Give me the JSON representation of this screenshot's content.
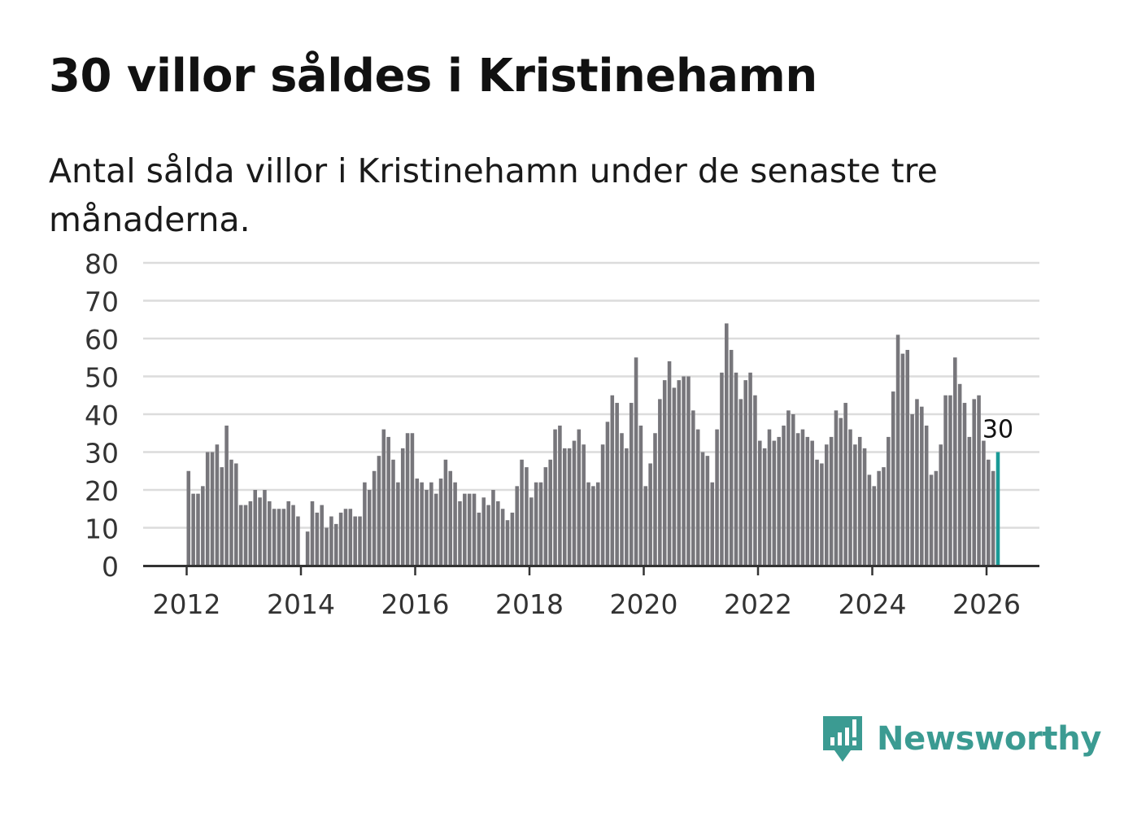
{
  "title": "30 villor såldes i Kristinehamn",
  "subtitle": "Antal sålda villor i Kristinehamn under de senaste tre månaderna.",
  "brand": {
    "name": "Newsworthy",
    "color": "#3b9b92",
    "icon": "newsworthy-logo-icon"
  },
  "colors": {
    "bar": "#77767b",
    "highlight": "#1a9a96",
    "grid": "#dcdcdc",
    "axis": "#333333"
  },
  "chart_data": {
    "type": "bar",
    "title": "30 villor såldes i Kristinehamn",
    "xlabel": "",
    "ylabel": "",
    "ylim": [
      0,
      80
    ],
    "yticks": [
      0,
      10,
      20,
      30,
      40,
      50,
      60,
      70,
      80
    ],
    "xticks": [
      "2012",
      "2014",
      "2016",
      "2018",
      "2020",
      "2022",
      "2024",
      "2026"
    ],
    "start": "2012-01",
    "interval": "month",
    "values": [
      25,
      19,
      19,
      21,
      30,
      30,
      32,
      26,
      37,
      28,
      27,
      16,
      16,
      17,
      20,
      18,
      20,
      17,
      15,
      15,
      15,
      17,
      16,
      13,
      null,
      9,
      17,
      14,
      16,
      10,
      13,
      11,
      14,
      15,
      15,
      13,
      13,
      22,
      20,
      25,
      29,
      36,
      34,
      28,
      22,
      31,
      35,
      35,
      23,
      22,
      20,
      22,
      19,
      23,
      28,
      25,
      22,
      17,
      19,
      19,
      19,
      14,
      18,
      16,
      20,
      17,
      15,
      12,
      14,
      21,
      28,
      26,
      18,
      22,
      22,
      26,
      28,
      36,
      37,
      31,
      31,
      33,
      36,
      32,
      22,
      21,
      22,
      32,
      38,
      45,
      43,
      35,
      31,
      43,
      55,
      37,
      21,
      27,
      35,
      44,
      49,
      54,
      47,
      49,
      50,
      50,
      41,
      36,
      30,
      29,
      22,
      36,
      51,
      64,
      57,
      51,
      44,
      49,
      51,
      45,
      33,
      31,
      36,
      33,
      34,
      37,
      41,
      40,
      35,
      36,
      34,
      33,
      28,
      27,
      32,
      34,
      41,
      39,
      43,
      36,
      32,
      34,
      31,
      24,
      21,
      25,
      26,
      34,
      46,
      61,
      56,
      57,
      40,
      44,
      42,
      37,
      24,
      25,
      32,
      45,
      45,
      55,
      48,
      43,
      34,
      44,
      45,
      33,
      28,
      25,
      30
    ],
    "highlight_label": "30"
  }
}
